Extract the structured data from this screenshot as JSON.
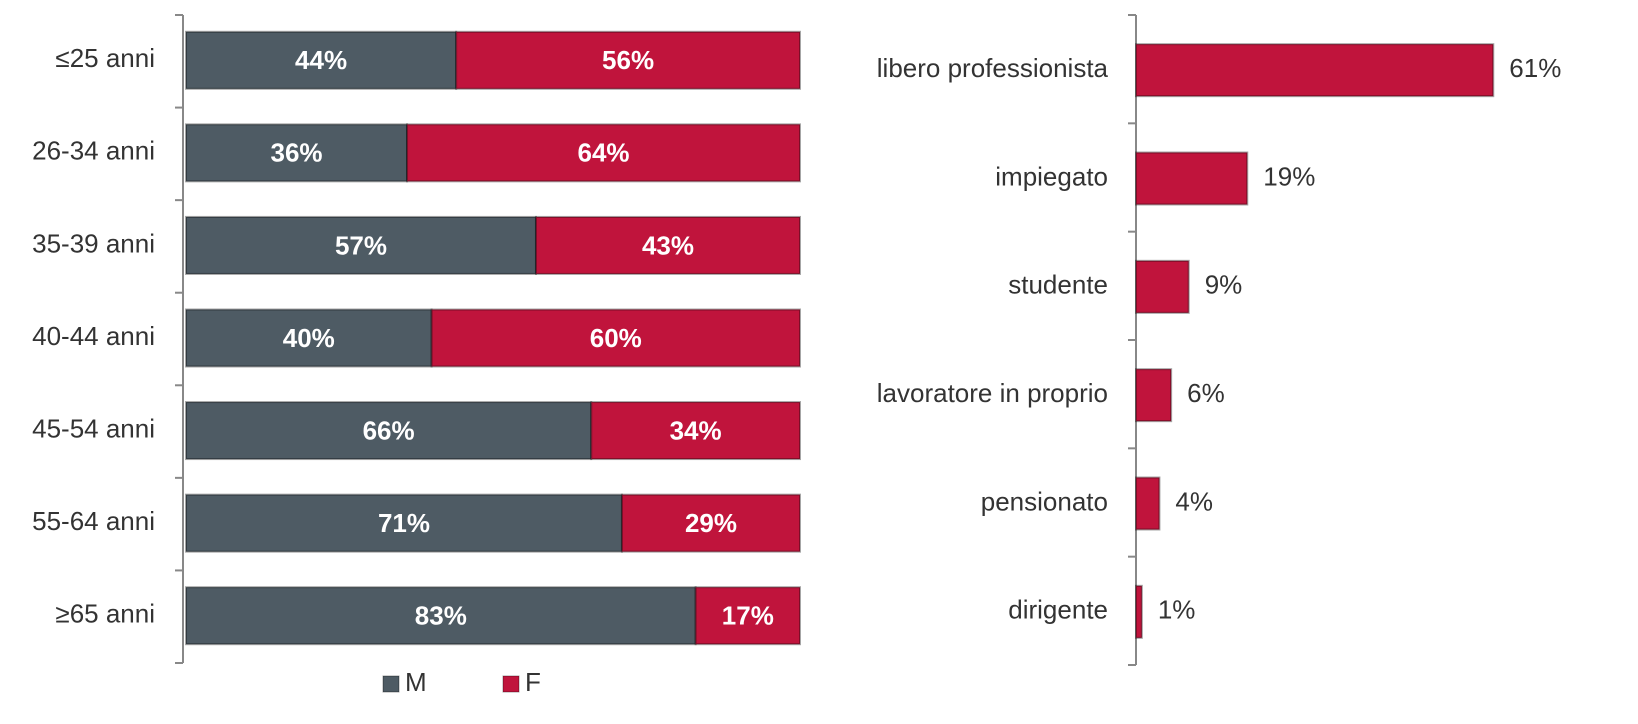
{
  "chart_data": [
    {
      "type": "stacked-bar-horizontal",
      "categories": [
        "≤25 anni",
        "26-34 anni",
        "35-39 anni",
        "40-44 anni",
        "45-54 anni",
        "55-64 anni",
        "≥65 anni"
      ],
      "series": [
        {
          "name": "M",
          "color": "#4e5b64",
          "values": [
            44,
            36,
            57,
            40,
            66,
            71,
            83
          ],
          "value_labels": [
            "44%",
            "36%",
            "57%",
            "40%",
            "66%",
            "71%",
            "83%"
          ]
        },
        {
          "name": "F",
          "color": "#c0143c",
          "values": [
            56,
            64,
            43,
            60,
            34,
            29,
            17
          ],
          "value_labels": [
            "56%",
            "64%",
            "43%",
            "60%",
            "34%",
            "29%",
            "17%"
          ]
        }
      ],
      "xlim": [
        0,
        100
      ]
    },
    {
      "type": "bar-horizontal",
      "categories": [
        "libero professionista",
        "impiegato",
        "studente",
        "lavoratore in proprio",
        "pensionato",
        "dirigente"
      ],
      "values": [
        61,
        19,
        9,
        6,
        4,
        1
      ],
      "value_labels": [
        "61%",
        "19%",
        "9%",
        "6%",
        "4%",
        "1%"
      ],
      "color": "#c0143c",
      "xlim": [
        0,
        70
      ]
    }
  ]
}
